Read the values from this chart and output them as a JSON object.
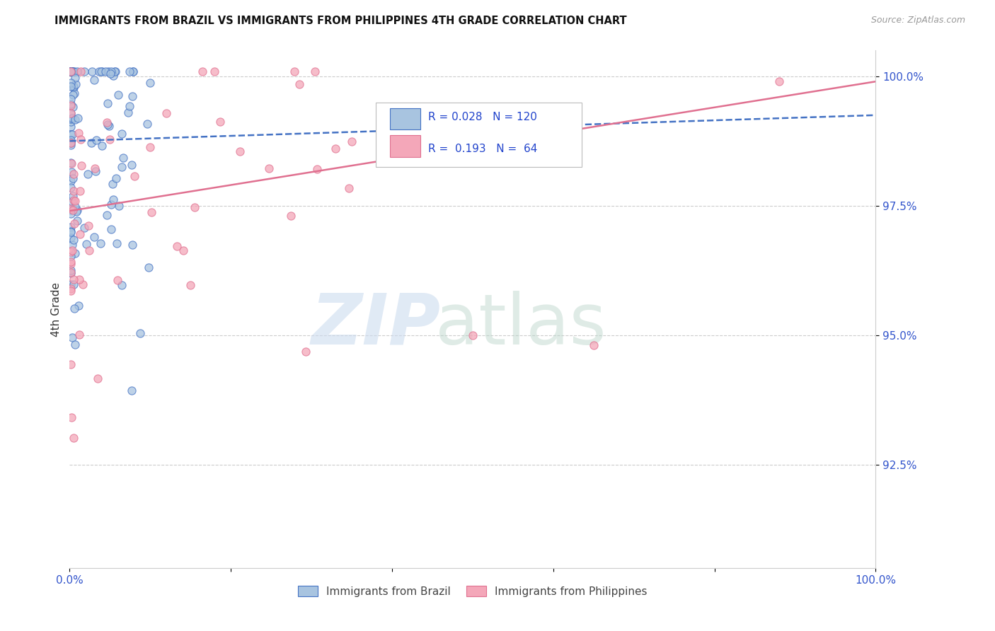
{
  "title": "IMMIGRANTS FROM BRAZIL VS IMMIGRANTS FROM PHILIPPINES 4TH GRADE CORRELATION CHART",
  "source": "Source: ZipAtlas.com",
  "ylabel": "4th Grade",
  "xlim": [
    0.0,
    1.0
  ],
  "ylim": [
    0.905,
    1.005
  ],
  "x_tick_labels": [
    "0.0%",
    "",
    "",
    "",
    "",
    "100.0%"
  ],
  "y_tick_labels": [
    "92.5%",
    "95.0%",
    "97.5%",
    "100.0%"
  ],
  "legend_labels": [
    "Immigrants from Brazil",
    "Immigrants from Philippines"
  ],
  "R_brazil": 0.028,
  "N_brazil": 120,
  "R_phil": 0.193,
  "N_phil": 64,
  "brazil_color": "#a8c4e0",
  "phil_color": "#f4a7b9",
  "brazil_line_color": "#4472c4",
  "phil_line_color": "#e07090",
  "brazil_trend_start": 0.9875,
  "brazil_trend_end": 0.9925,
  "phil_trend_start": 0.974,
  "phil_trend_end": 0.999
}
